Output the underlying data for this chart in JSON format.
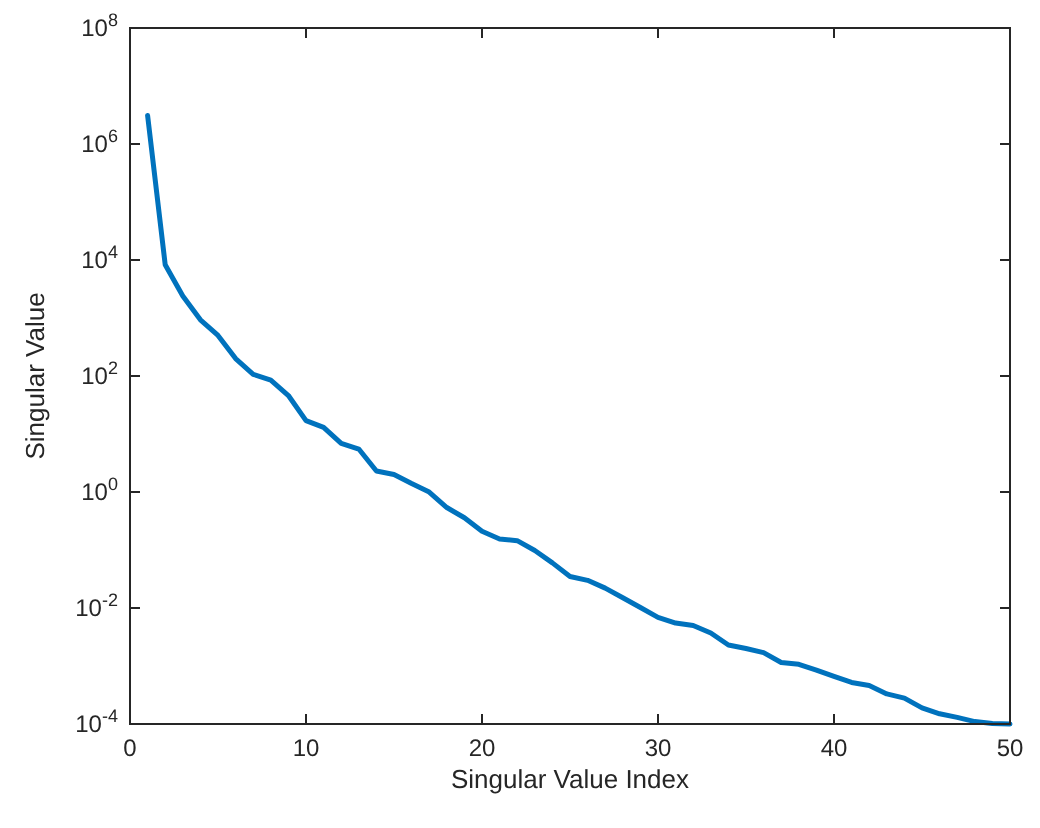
{
  "chart_data": {
    "type": "line",
    "xlabel": "Singular Value Index",
    "ylabel": "Singular Value",
    "log": "y",
    "grid": false,
    "marker": "none",
    "line_style": "solid",
    "xlim": [
      0,
      50
    ],
    "xticks": [
      0,
      10,
      20,
      30,
      40,
      50
    ],
    "ylim": [
      0.0001,
      100000000
    ],
    "yticks": [
      {
        "value": 0.0001,
        "label": "10$^{-4}$"
      },
      {
        "value": 0.01,
        "label": "10$^{-2}$"
      },
      {
        "value": 1,
        "label": "10$^{0}$"
      },
      {
        "value": 100,
        "label": "10$^{2}$"
      },
      {
        "value": 10000,
        "label": "10$^{4}$"
      },
      {
        "value": 1000000,
        "label": "10$^{6}$"
      },
      {
        "value": 100000000,
        "label": "10$^{8}$"
      }
    ],
    "x": [
      1,
      2,
      3,
      4,
      5,
      6,
      7,
      8,
      9,
      10,
      11,
      12,
      13,
      14,
      15,
      16,
      17,
      18,
      19,
      20,
      21,
      22,
      23,
      24,
      25,
      26,
      27,
      28,
      29,
      30,
      31,
      32,
      33,
      34,
      35,
      36,
      37,
      38,
      39,
      40,
      41,
      42,
      43,
      44,
      45,
      46,
      47,
      48,
      49,
      50
    ],
    "series": [
      {
        "color": "#0072bd",
        "values": [
          3100000,
          8300,
          2400,
          930,
          500,
          200,
          107,
          85,
          46,
          17,
          13,
          6.9,
          5.5,
          2.3,
          2.0,
          1.4,
          1.0,
          0.54,
          0.36,
          0.21,
          0.155,
          0.145,
          0.098,
          0.06,
          0.035,
          0.03,
          0.022,
          0.015,
          0.0102,
          0.0069,
          0.0055,
          0.005,
          0.0037,
          0.0023,
          0.002,
          0.0017,
          0.00115,
          0.00107,
          0.00085,
          0.00066,
          0.00052,
          0.00046,
          0.00033,
          0.00028,
          0.00019,
          0.00015,
          0.00013,
          0.00011,
          0.000102,
          0.0001
        ]
      }
    ]
  }
}
